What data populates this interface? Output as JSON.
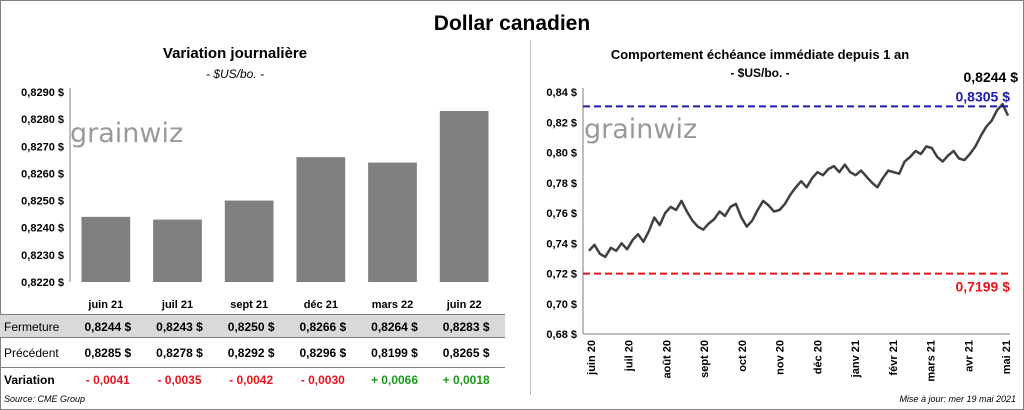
{
  "main_title": "Dollar canadien",
  "left_title": "Variation  journalière",
  "left_subtitle": "- $US/bo. -",
  "right_title": "Comportement échéance immédiate depuis 1 an",
  "right_subtitle": "- $US/bo. -",
  "watermark": "grainwiz",
  "source": "Source: CME Group",
  "update": "Mise à jour: mer 19 mai 2021",
  "table": {
    "fermeture_label": "Fermeture",
    "precedent_label": "Précédent",
    "variation_label": "Variation",
    "fermeture": [
      "0,8244  $",
      "0,8243  $",
      "0,8250  $",
      "0,8266  $",
      "0,8264  $",
      "0,8283  $"
    ],
    "precedent": [
      "0,8285  $",
      "0,8278  $",
      "0,8292  $",
      "0,8296  $",
      "0,8199  $",
      "0,8265  $"
    ],
    "variation": [
      "- 0,0041",
      "- 0,0035",
      "- 0,0042",
      "- 0,0030",
      "+ 0,0066",
      "+ 0,0018"
    ],
    "colors": {
      "negative": "#e8141b",
      "positive": "#1a9a1a"
    }
  },
  "chart_data": [
    {
      "type": "bar",
      "categories": [
        "juin 21",
        "juil 21",
        "sept 21",
        "déc 21",
        "mars 22",
        "juin 22"
      ],
      "values": [
        0.8244,
        0.8243,
        0.825,
        0.8266,
        0.8264,
        0.8283
      ],
      "ylim": [
        0.822,
        0.829
      ],
      "yticks": [
        "0,8220 $",
        "0,8230 $",
        "0,8240 $",
        "0,8250 $",
        "0,8260 $",
        "0,8270 $",
        "0,8280 $",
        "0,8290 $"
      ],
      "color": "#808080"
    },
    {
      "type": "line",
      "x_labels": [
        "juin 20",
        "juil 20",
        "août 20",
        "sept 20",
        "oct 20",
        "nov 20",
        "déc 20",
        "janv 21",
        "févr 21",
        "mars 21",
        "avr 21",
        "mai 21"
      ],
      "ylim": [
        0.68,
        0.84
      ],
      "yticks": [
        "0,68 $",
        "0,70 $",
        "0,72 $",
        "0,74 $",
        "0,76 $",
        "0,78 $",
        "0,80 $",
        "0,82 $",
        "0,84 $"
      ],
      "values": [
        0.735,
        0.739,
        0.733,
        0.731,
        0.737,
        0.735,
        0.74,
        0.736,
        0.742,
        0.746,
        0.741,
        0.748,
        0.757,
        0.752,
        0.76,
        0.764,
        0.762,
        0.768,
        0.761,
        0.755,
        0.751,
        0.749,
        0.753,
        0.756,
        0.761,
        0.758,
        0.764,
        0.766,
        0.757,
        0.751,
        0.755,
        0.762,
        0.768,
        0.765,
        0.761,
        0.762,
        0.766,
        0.772,
        0.777,
        0.781,
        0.777,
        0.783,
        0.787,
        0.785,
        0.789,
        0.791,
        0.787,
        0.792,
        0.787,
        0.785,
        0.788,
        0.784,
        0.78,
        0.777,
        0.783,
        0.788,
        0.787,
        0.786,
        0.794,
        0.797,
        0.801,
        0.799,
        0.804,
        0.803,
        0.797,
        0.794,
        0.798,
        0.801,
        0.796,
        0.795,
        0.799,
        0.804,
        0.811,
        0.817,
        0.821,
        0.828,
        0.832,
        0.8244
      ],
      "color": "#404040",
      "reference_lines": [
        {
          "value": 0.8305,
          "label": "0,8305  $",
          "color": "#1c1caa"
        },
        {
          "value": 0.7199,
          "label": "0,7199  $",
          "color": "#e8141b"
        }
      ],
      "last_label": "0,8244 $"
    }
  ]
}
